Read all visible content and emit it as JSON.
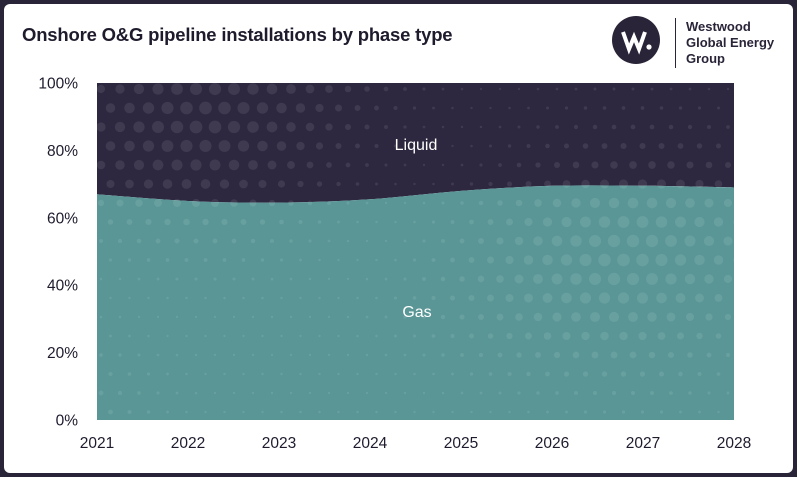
{
  "title": "Onshore O&G pipeline installations by phase type",
  "logo": {
    "lines": [
      "Westwood",
      "Global Energy",
      "Group"
    ],
    "icon": "westwood-w-logo"
  },
  "colors": {
    "gas": "#5a9696",
    "liquid": "#2d2840",
    "dots": "#ffffff",
    "frame": "#2a2438"
  },
  "chart_data": {
    "type": "area",
    "stacked": true,
    "normalized": true,
    "x": [
      2021,
      2022,
      2023,
      2024,
      2025,
      2026,
      2027,
      2028
    ],
    "series": [
      {
        "name": "Gas",
        "values": [
          67,
          65,
          64.5,
          65.5,
          68,
          69.5,
          69.5,
          69
        ]
      },
      {
        "name": "Liquid",
        "values": [
          33,
          35,
          35.5,
          34.5,
          32,
          30.5,
          30.5,
          31
        ]
      }
    ],
    "ylim": [
      0,
      100
    ],
    "yticks": [
      "0%",
      "20%",
      "40%",
      "60%",
      "80%",
      "100%"
    ],
    "xticks": [
      "2021",
      "2022",
      "2023",
      "2024",
      "2025",
      "2026",
      "2027",
      "2028"
    ],
    "grid": false,
    "legend": "inline"
  }
}
